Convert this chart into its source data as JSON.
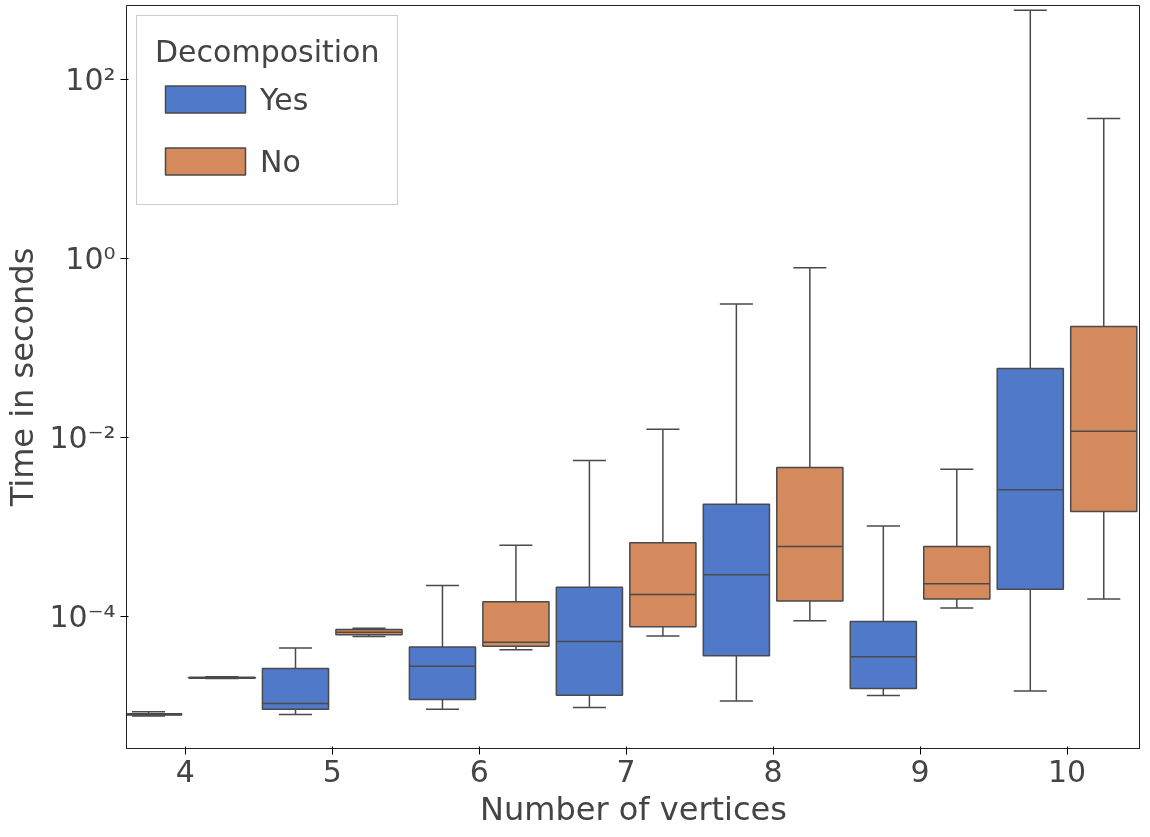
{
  "chart_data": {
    "type": "box",
    "xlabel": "Number of vertices",
    "ylabel": "Time in seconds",
    "legend_title": "Decomposition",
    "legend": "top left",
    "log": true,
    "categories": [
      "4",
      "5",
      "6",
      "7",
      "8",
      "9",
      "10"
    ],
    "ylim": [
      3.3e-06,
      680
    ],
    "yticks": [
      {
        "value": 0.0001,
        "label": "10⁻⁴"
      },
      {
        "value": 0.01,
        "label": "10⁻²"
      },
      {
        "value": 1,
        "label": "10⁰"
      },
      {
        "value": 100,
        "label": "10²"
      }
    ],
    "series": [
      {
        "name": "Yes",
        "color": "#5179c9",
        "boxes": [
          {
            "low": 7.6e-06,
            "q1": 7.8e-06,
            "median": 7.9e-06,
            "q3": 8.1e-06,
            "high": 8.5e-06
          },
          {
            "low": 7.9e-06,
            "q1": 9.1e-06,
            "median": 1.05e-05,
            "q3": 2.6e-05,
            "high": 4.4e-05
          },
          {
            "low": 9.1e-06,
            "q1": 1.17e-05,
            "median": 2.75e-05,
            "q3": 4.5e-05,
            "high": 0.00022
          },
          {
            "low": 9.5e-06,
            "q1": 1.3e-05,
            "median": 5.2e-05,
            "q3": 0.00021,
            "high": 0.0055
          },
          {
            "low": 1.12e-05,
            "q1": 3.6e-05,
            "median": 0.00029,
            "q3": 0.00178,
            "high": 0.31
          },
          {
            "low": 1.29e-05,
            "q1": 1.55e-05,
            "median": 3.5e-05,
            "q3": 8.7e-05,
            "high": 0.00102
          },
          {
            "low": 1.45e-05,
            "q1": 0.0002,
            "median": 0.0026,
            "q3": 0.059,
            "high": 600
          }
        ]
      },
      {
        "name": "No",
        "color": "#d58a5e",
        "boxes": [
          {
            "low": 2e-05,
            "q1": 2.02e-05,
            "median": 2.04e-05,
            "q3": 2.07e-05,
            "high": 2.1e-05
          },
          {
            "low": 5.9e-05,
            "q1": 6.2e-05,
            "median": 6.6e-05,
            "q3": 7.1e-05,
            "high": 7.3e-05
          },
          {
            "low": 4.2e-05,
            "q1": 4.6e-05,
            "median": 5.1e-05,
            "q3": 0.000145,
            "high": 0.00062
          },
          {
            "low": 6e-05,
            "q1": 7.6e-05,
            "median": 0.000174,
            "q3": 0.00066,
            "high": 0.0123
          },
          {
            "low": 8.9e-05,
            "q1": 0.000148,
            "median": 0.0006,
            "q3": 0.0046,
            "high": 0.79
          },
          {
            "low": 0.000123,
            "q1": 0.000155,
            "median": 0.00023,
            "q3": 0.0006,
            "high": 0.0044
          },
          {
            "low": 0.000155,
            "q1": 0.00148,
            "median": 0.0117,
            "q3": 0.174,
            "high": 37
          }
        ]
      }
    ]
  }
}
